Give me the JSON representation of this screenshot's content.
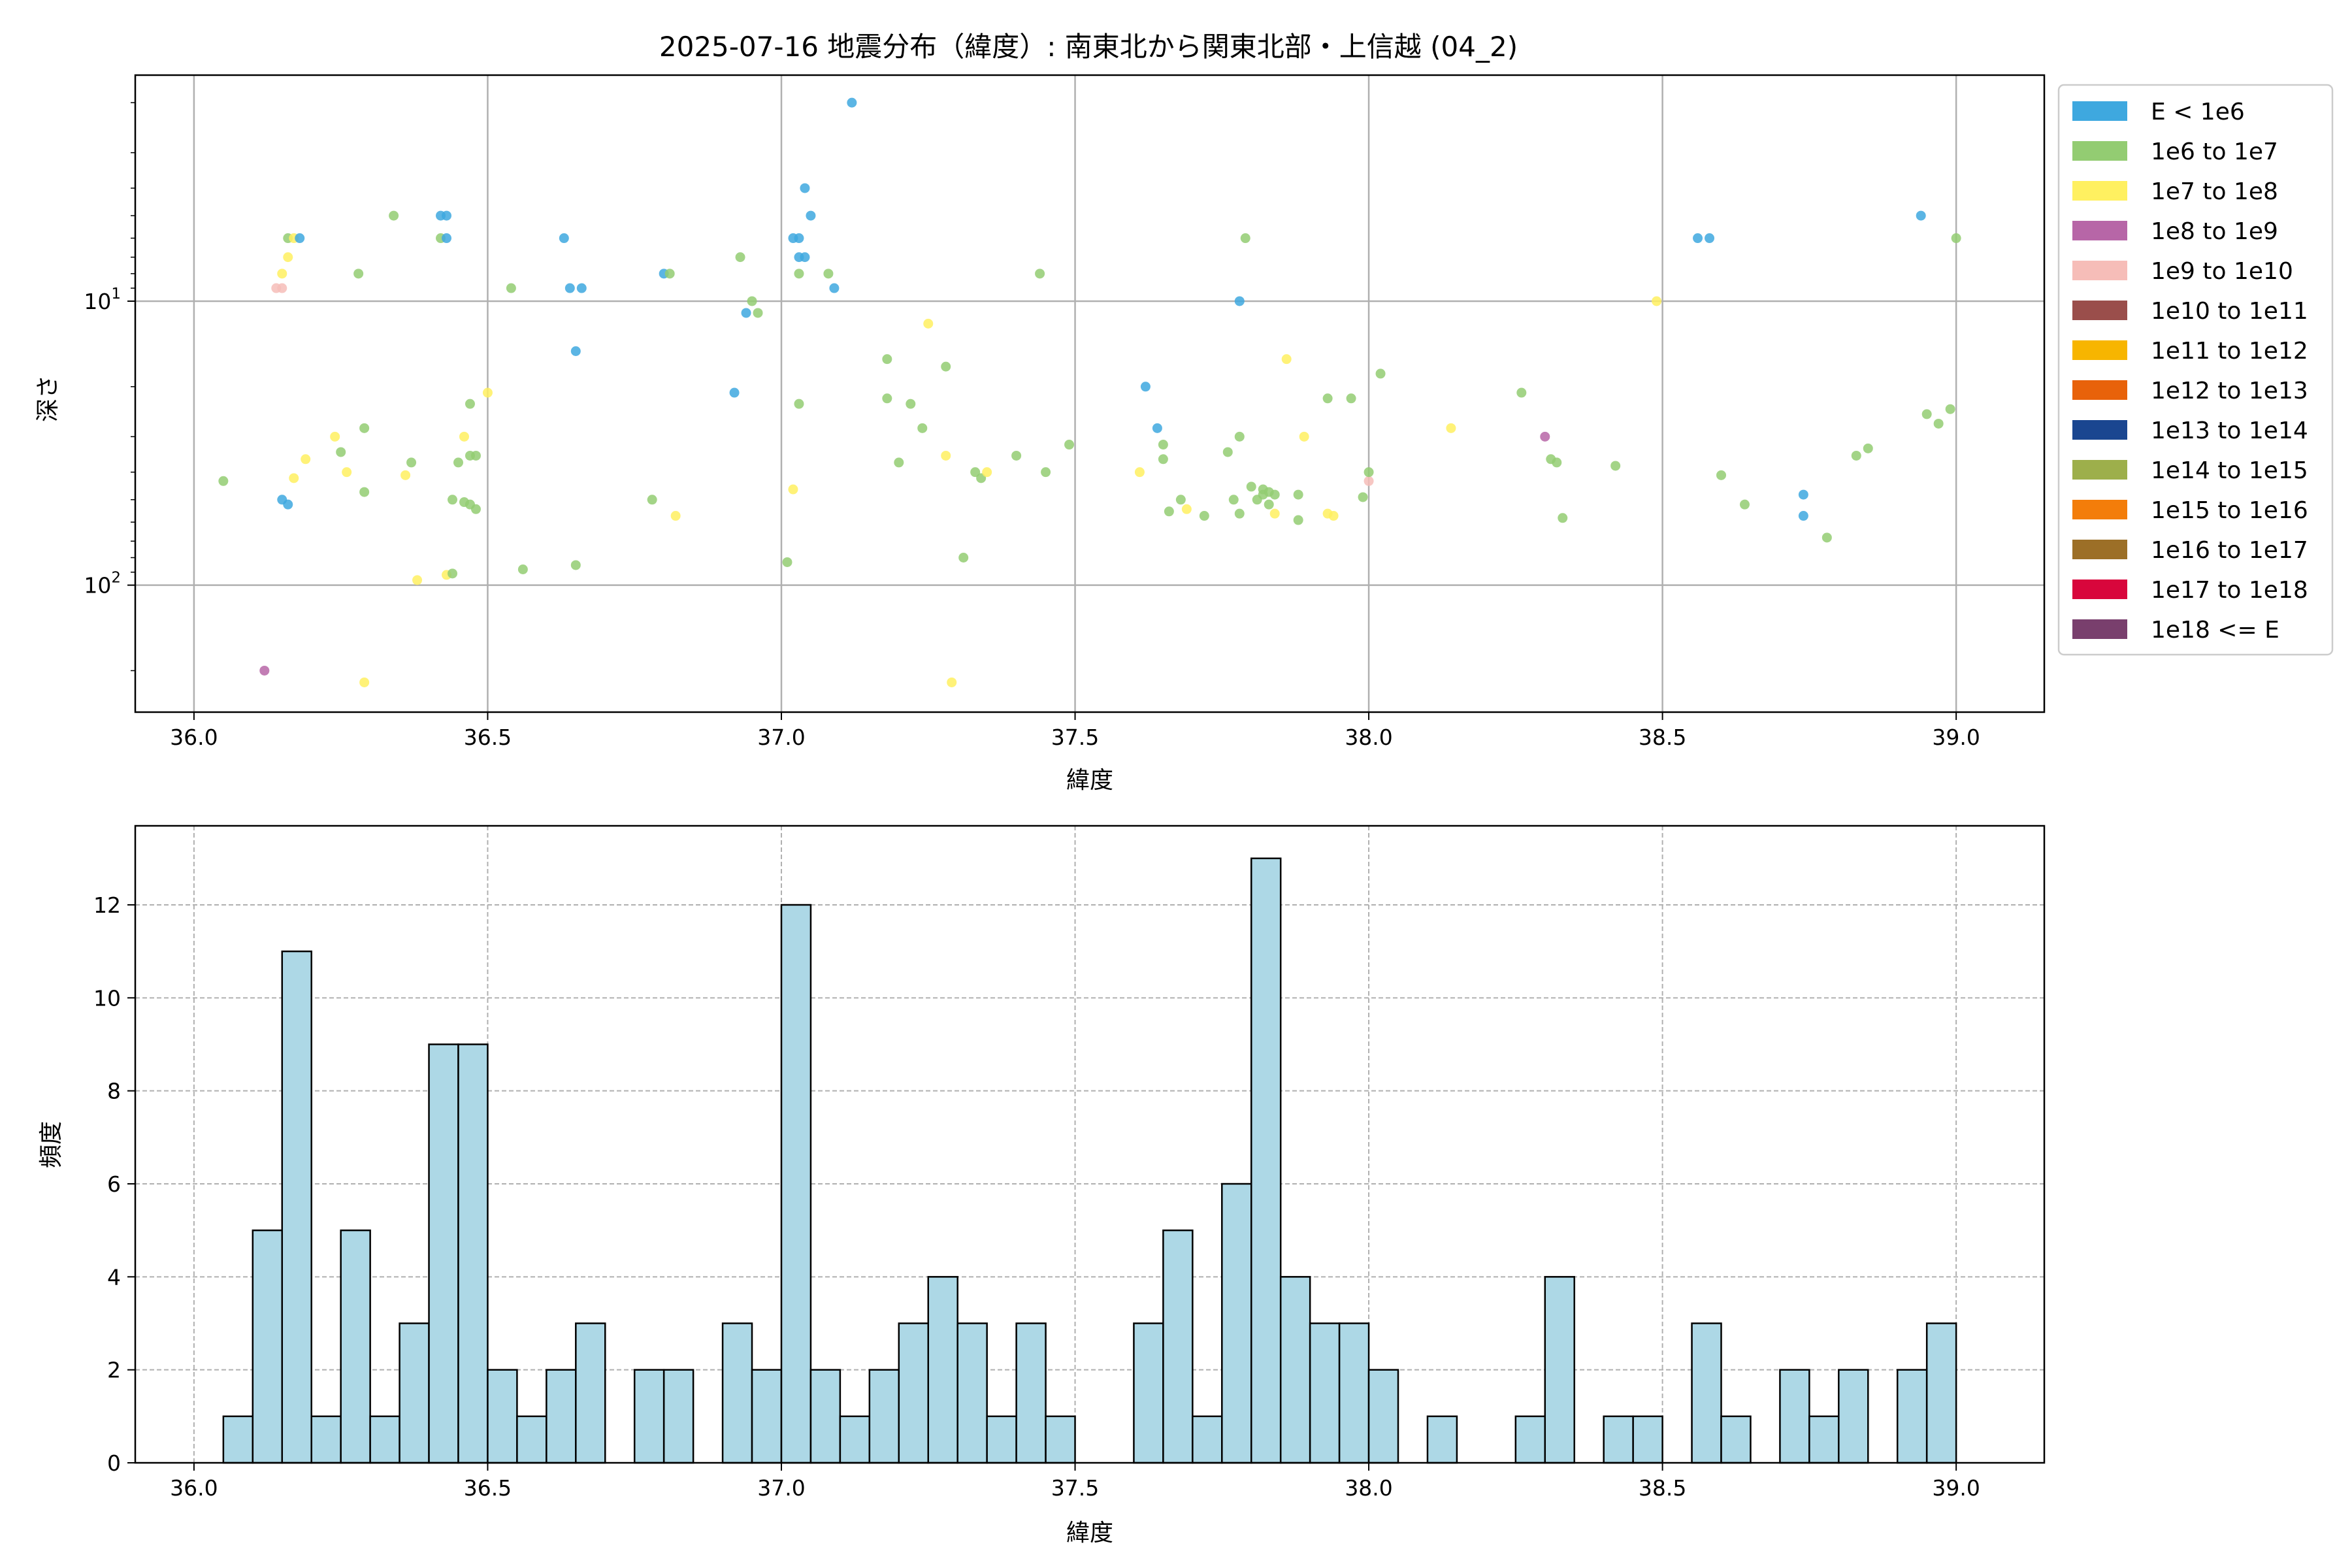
{
  "title": "2025-07-16 地震分布（緯度）: 南東北から関東北部・上信越 (04_2)",
  "chart_data": [
    {
      "type": "scatter",
      "xlabel": "緯度",
      "ylabel": "深さ",
      "xlim": [
        35.9,
        39.15
      ],
      "ylim": [
        280,
        1.6
      ],
      "yscale": "log-inverted",
      "grid": true,
      "legend_placement": "outside-right",
      "xticks": [
        {
          "value": 36.0,
          "label": "36.0"
        },
        {
          "value": 36.5,
          "label": "36.5"
        },
        {
          "value": 37.0,
          "label": "37.0"
        },
        {
          "value": 37.5,
          "label": "37.5"
        },
        {
          "value": 38.0,
          "label": "38.0"
        },
        {
          "value": 38.5,
          "label": "38.5"
        },
        {
          "value": 39.0,
          "label": "39.0"
        }
      ],
      "yticks": [
        {
          "value": 10,
          "base": "10",
          "exp": "1"
        },
        {
          "value": 100,
          "base": "10",
          "exp": "2"
        }
      ],
      "legend": [
        {
          "label": "E < 1e6",
          "color": "#3ea8df"
        },
        {
          "label": "1e6 to 1e7",
          "color": "#93cc72"
        },
        {
          "label": "1e7 to 1e8",
          "color": "#fff060"
        },
        {
          "label": "1e8 to 1e9",
          "color": "#b766a7"
        },
        {
          "label": "1e9 to 1e10",
          "color": "#f6bdb8"
        },
        {
          "label": "1e10 to 1e11",
          "color": "#9a4e4b"
        },
        {
          "label": "1e11 to 1e12",
          "color": "#f7b500"
        },
        {
          "label": "1e12 to 1e13",
          "color": "#e8620a"
        },
        {
          "label": "1e13 to 1e14",
          "color": "#1a4690"
        },
        {
          "label": "1e14 to 1e15",
          "color": "#9daf4b"
        },
        {
          "label": "1e15 to 1e16",
          "color": "#f37d0a"
        },
        {
          "label": "1e16 to 1e17",
          "color": "#9c6f27"
        },
        {
          "label": "1e17 to 1e18",
          "color": "#d8063c"
        },
        {
          "label": "1e18 <= E",
          "color": "#793f6d"
        }
      ],
      "points": [
        {
          "x": 36.12,
          "y": 200,
          "c": 3
        },
        {
          "x": 36.29,
          "y": 220,
          "c": 2
        },
        {
          "x": 36.05,
          "y": 43,
          "c": 1
        },
        {
          "x": 36.15,
          "y": 50,
          "c": 0
        },
        {
          "x": 36.16,
          "y": 52,
          "c": 0
        },
        {
          "x": 36.17,
          "y": 42,
          "c": 2
        },
        {
          "x": 36.19,
          "y": 36,
          "c": 2
        },
        {
          "x": 36.24,
          "y": 30,
          "c": 2
        },
        {
          "x": 36.25,
          "y": 34,
          "c": 1
        },
        {
          "x": 36.26,
          "y": 40,
          "c": 2
        },
        {
          "x": 36.29,
          "y": 47,
          "c": 1
        },
        {
          "x": 36.29,
          "y": 28,
          "c": 1
        },
        {
          "x": 36.36,
          "y": 41,
          "c": 2
        },
        {
          "x": 36.37,
          "y": 37,
          "c": 1
        },
        {
          "x": 36.38,
          "y": 96,
          "c": 2
        },
        {
          "x": 36.43,
          "y": 92,
          "c": 2
        },
        {
          "x": 36.44,
          "y": 91,
          "c": 1
        },
        {
          "x": 36.44,
          "y": 50,
          "c": 1
        },
        {
          "x": 36.45,
          "y": 37,
          "c": 1
        },
        {
          "x": 36.46,
          "y": 51,
          "c": 1
        },
        {
          "x": 36.46,
          "y": 30,
          "c": 2
        },
        {
          "x": 36.47,
          "y": 35,
          "c": 1
        },
        {
          "x": 36.47,
          "y": 52,
          "c": 1
        },
        {
          "x": 36.48,
          "y": 35,
          "c": 1
        },
        {
          "x": 36.48,
          "y": 54,
          "c": 1
        },
        {
          "x": 36.47,
          "y": 23,
          "c": 1
        },
        {
          "x": 36.5,
          "y": 21,
          "c": 2
        },
        {
          "x": 36.15,
          "y": 9,
          "c": 4
        },
        {
          "x": 36.14,
          "y": 9,
          "c": 4
        },
        {
          "x": 36.15,
          "y": 8,
          "c": 2
        },
        {
          "x": 36.16,
          "y": 7,
          "c": 2
        },
        {
          "x": 36.16,
          "y": 6,
          "c": 1
        },
        {
          "x": 36.17,
          "y": 6,
          "c": 2
        },
        {
          "x": 36.18,
          "y": 6,
          "c": 0
        },
        {
          "x": 36.28,
          "y": 8,
          "c": 1
        },
        {
          "x": 36.34,
          "y": 5,
          "c": 1
        },
        {
          "x": 36.42,
          "y": 5,
          "c": 0
        },
        {
          "x": 36.43,
          "y": 5,
          "c": 0
        },
        {
          "x": 36.42,
          "y": 6,
          "c": 1
        },
        {
          "x": 36.43,
          "y": 6,
          "c": 0
        },
        {
          "x": 36.54,
          "y": 9,
          "c": 1
        },
        {
          "x": 36.56,
          "y": 88,
          "c": 1
        },
        {
          "x": 36.63,
          "y": 6,
          "c": 0
        },
        {
          "x": 36.64,
          "y": 9,
          "c": 0
        },
        {
          "x": 36.66,
          "y": 9,
          "c": 0
        },
        {
          "x": 36.65,
          "y": 15,
          "c": 0
        },
        {
          "x": 36.65,
          "y": 85,
          "c": 1
        },
        {
          "x": 36.78,
          "y": 50,
          "c": 1
        },
        {
          "x": 36.8,
          "y": 8,
          "c": 0
        },
        {
          "x": 36.81,
          "y": 8,
          "c": 1
        },
        {
          "x": 36.82,
          "y": 57,
          "c": 2
        },
        {
          "x": 36.92,
          "y": 21,
          "c": 0
        },
        {
          "x": 36.93,
          "y": 7,
          "c": 1
        },
        {
          "x": 36.94,
          "y": 11,
          "c": 0
        },
        {
          "x": 36.95,
          "y": 10,
          "c": 1
        },
        {
          "x": 36.96,
          "y": 11,
          "c": 1
        },
        {
          "x": 37.01,
          "y": 83,
          "c": 1
        },
        {
          "x": 37.02,
          "y": 46,
          "c": 2
        },
        {
          "x": 37.02,
          "y": 6,
          "c": 0
        },
        {
          "x": 37.03,
          "y": 6,
          "c": 0
        },
        {
          "x": 37.03,
          "y": 7,
          "c": 0
        },
        {
          "x": 37.03,
          "y": 8,
          "c": 1
        },
        {
          "x": 37.04,
          "y": 7,
          "c": 0
        },
        {
          "x": 37.04,
          "y": 4,
          "c": 0
        },
        {
          "x": 37.05,
          "y": 5,
          "c": 0
        },
        {
          "x": 37.03,
          "y": 23,
          "c": 1
        },
        {
          "x": 37.08,
          "y": 8,
          "c": 1
        },
        {
          "x": 37.09,
          "y": 9,
          "c": 0
        },
        {
          "x": 37.12,
          "y": 2,
          "c": 0
        },
        {
          "x": 37.18,
          "y": 16,
          "c": 1
        },
        {
          "x": 37.18,
          "y": 22,
          "c": 1
        },
        {
          "x": 37.2,
          "y": 37,
          "c": 1
        },
        {
          "x": 37.22,
          "y": 23,
          "c": 1
        },
        {
          "x": 37.24,
          "y": 28,
          "c": 1
        },
        {
          "x": 37.25,
          "y": 12,
          "c": 2
        },
        {
          "x": 37.28,
          "y": 35,
          "c": 2
        },
        {
          "x": 37.28,
          "y": 17,
          "c": 1
        },
        {
          "x": 37.29,
          "y": 220,
          "c": 2
        },
        {
          "x": 37.31,
          "y": 80,
          "c": 1
        },
        {
          "x": 37.33,
          "y": 40,
          "c": 1
        },
        {
          "x": 37.34,
          "y": 42,
          "c": 1
        },
        {
          "x": 37.35,
          "y": 40,
          "c": 2
        },
        {
          "x": 37.4,
          "y": 35,
          "c": 1
        },
        {
          "x": 37.44,
          "y": 8,
          "c": 1
        },
        {
          "x": 37.45,
          "y": 40,
          "c": 1
        },
        {
          "x": 37.49,
          "y": 32,
          "c": 1
        },
        {
          "x": 37.61,
          "y": 40,
          "c": 2
        },
        {
          "x": 37.62,
          "y": 20,
          "c": 0
        },
        {
          "x": 37.64,
          "y": 28,
          "c": 0
        },
        {
          "x": 37.65,
          "y": 36,
          "c": 1
        },
        {
          "x": 37.65,
          "y": 32,
          "c": 1
        },
        {
          "x": 37.66,
          "y": 55,
          "c": 1
        },
        {
          "x": 37.68,
          "y": 50,
          "c": 1
        },
        {
          "x": 37.69,
          "y": 54,
          "c": 2
        },
        {
          "x": 37.72,
          "y": 57,
          "c": 1
        },
        {
          "x": 37.76,
          "y": 34,
          "c": 1
        },
        {
          "x": 37.77,
          "y": 50,
          "c": 1
        },
        {
          "x": 37.78,
          "y": 30,
          "c": 1
        },
        {
          "x": 37.78,
          "y": 56,
          "c": 1
        },
        {
          "x": 37.78,
          "y": 10,
          "c": 0
        },
        {
          "x": 37.79,
          "y": 6,
          "c": 1
        },
        {
          "x": 37.8,
          "y": 45,
          "c": 1
        },
        {
          "x": 37.81,
          "y": 50,
          "c": 1
        },
        {
          "x": 37.82,
          "y": 48,
          "c": 1
        },
        {
          "x": 37.82,
          "y": 46,
          "c": 1
        },
        {
          "x": 37.83,
          "y": 52,
          "c": 1
        },
        {
          "x": 37.83,
          "y": 47,
          "c": 1
        },
        {
          "x": 37.84,
          "y": 56,
          "c": 2
        },
        {
          "x": 37.84,
          "y": 48,
          "c": 1
        },
        {
          "x": 37.86,
          "y": 16,
          "c": 2
        },
        {
          "x": 37.88,
          "y": 48,
          "c": 1
        },
        {
          "x": 37.88,
          "y": 59,
          "c": 1
        },
        {
          "x": 37.89,
          "y": 30,
          "c": 2
        },
        {
          "x": 37.93,
          "y": 22,
          "c": 1
        },
        {
          "x": 37.93,
          "y": 56,
          "c": 2
        },
        {
          "x": 37.94,
          "y": 57,
          "c": 2
        },
        {
          "x": 37.97,
          "y": 22,
          "c": 1
        },
        {
          "x": 37.99,
          "y": 49,
          "c": 1
        },
        {
          "x": 38.0,
          "y": 43,
          "c": 4
        },
        {
          "x": 38.0,
          "y": 40,
          "c": 1
        },
        {
          "x": 38.02,
          "y": 18,
          "c": 1
        },
        {
          "x": 38.14,
          "y": 28,
          "c": 2
        },
        {
          "x": 38.26,
          "y": 21,
          "c": 1
        },
        {
          "x": 38.3,
          "y": 30,
          "c": 3
        },
        {
          "x": 38.31,
          "y": 36,
          "c": 1
        },
        {
          "x": 38.32,
          "y": 37,
          "c": 1
        },
        {
          "x": 38.33,
          "y": 58,
          "c": 1
        },
        {
          "x": 38.42,
          "y": 38,
          "c": 1
        },
        {
          "x": 38.49,
          "y": 10,
          "c": 2
        },
        {
          "x": 38.56,
          "y": 6,
          "c": 0
        },
        {
          "x": 38.58,
          "y": 6,
          "c": 0
        },
        {
          "x": 38.6,
          "y": 41,
          "c": 1
        },
        {
          "x": 38.64,
          "y": 52,
          "c": 1
        },
        {
          "x": 38.74,
          "y": 48,
          "c": 0
        },
        {
          "x": 38.74,
          "y": 57,
          "c": 0
        },
        {
          "x": 38.78,
          "y": 68,
          "c": 1
        },
        {
          "x": 38.83,
          "y": 35,
          "c": 1
        },
        {
          "x": 38.85,
          "y": 33,
          "c": 1
        },
        {
          "x": 38.94,
          "y": 5,
          "c": 0
        },
        {
          "x": 38.95,
          "y": 25,
          "c": 1
        },
        {
          "x": 38.97,
          "y": 27,
          "c": 1
        },
        {
          "x": 38.99,
          "y": 24,
          "c": 1
        },
        {
          "x": 39.0,
          "y": 6,
          "c": 1
        }
      ]
    },
    {
      "type": "bar",
      "xlabel": "緯度",
      "ylabel": "頻度",
      "xlim": [
        35.9,
        39.15
      ],
      "ylim": [
        0,
        13.7
      ],
      "grid": true,
      "bin_start": 36.05,
      "bin_width": 0.05,
      "xticks": [
        {
          "value": 36.0,
          "label": "36.0"
        },
        {
          "value": 36.5,
          "label": "36.5"
        },
        {
          "value": 37.0,
          "label": "37.0"
        },
        {
          "value": 37.5,
          "label": "37.5"
        },
        {
          "value": 38.0,
          "label": "38.0"
        },
        {
          "value": 38.5,
          "label": "38.5"
        },
        {
          "value": 39.0,
          "label": "39.0"
        }
      ],
      "yticks": [
        {
          "value": 0,
          "label": "0"
        },
        {
          "value": 2,
          "label": "2"
        },
        {
          "value": 4,
          "label": "4"
        },
        {
          "value": 6,
          "label": "6"
        },
        {
          "value": 8,
          "label": "8"
        },
        {
          "value": 10,
          "label": "10"
        },
        {
          "value": 12,
          "label": "12"
        }
      ],
      "bar_color": "#add8e6",
      "values": [
        1,
        5,
        11,
        1,
        5,
        1,
        3,
        9,
        9,
        2,
        1,
        2,
        3,
        0,
        2,
        2,
        0,
        3,
        2,
        12,
        2,
        1,
        2,
        3,
        4,
        3,
        1,
        3,
        1,
        0,
        0,
        3,
        5,
        1,
        6,
        13,
        4,
        3,
        3,
        2,
        0,
        1,
        0,
        0,
        1,
        4,
        0,
        1,
        1,
        0,
        3,
        1,
        0,
        2,
        1,
        2,
        0,
        2,
        3
      ]
    }
  ]
}
